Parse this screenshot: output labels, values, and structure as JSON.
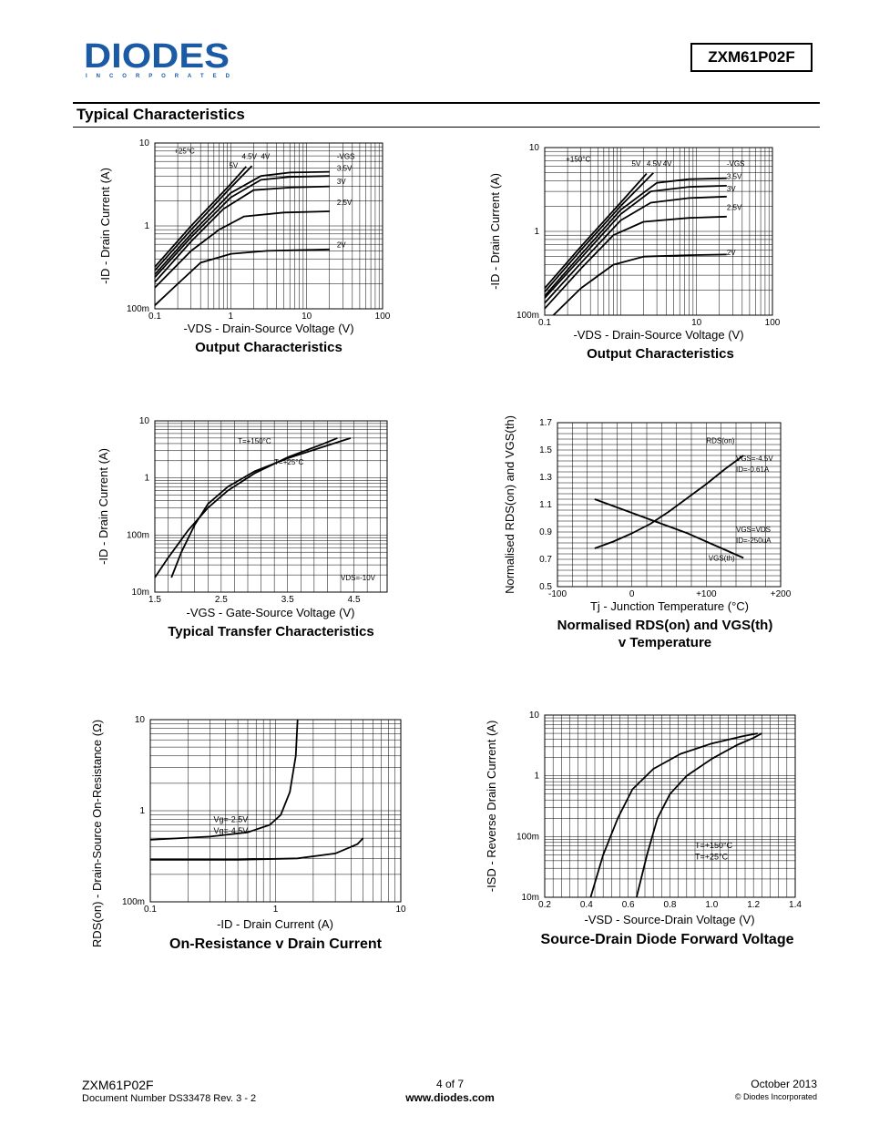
{
  "header": {
    "logo_text": "DIODES",
    "logo_sub": "I N C O R P O R A T E D",
    "part_number": "ZXM61P02F",
    "section_title": "Typical Characteristics"
  },
  "footer": {
    "part": "ZXM61P02F",
    "doc_number": "Document Number DS33478 Rev. 3 - 2",
    "page": "4 of 7",
    "website": "www.diodes.com",
    "date": "October 2013",
    "copyright": "© Diodes Incorporated"
  },
  "chart_data": [
    {
      "id": "c1",
      "type": "line",
      "title": "Output Characteristics",
      "xlabel": "-VDS - Drain-Source Voltage (V)",
      "ylabel": "-ID - Drain Current (A)",
      "xscale": "log",
      "yscale": "log",
      "xlim": [
        0.1,
        100
      ],
      "ylim": [
        0.1,
        10
      ],
      "xticks": [
        0.1,
        1,
        10,
        100
      ],
      "xtick_labels": [
        "0.1",
        "1",
        "10",
        "100"
      ],
      "yticks": [
        0.1,
        1,
        10
      ],
      "ytick_labels": [
        "100m",
        "1",
        "10"
      ],
      "legend_title": "-VGS",
      "annotations": [
        {
          "text": "+25°C",
          "x": 0.18,
          "y": 7.5
        },
        {
          "text": "4.5V",
          "x": 1.4,
          "y": 6.4
        },
        {
          "text": "4V",
          "x": 2.5,
          "y": 6.4
        },
        {
          "text": "5V",
          "x": 0.95,
          "y": 5.0
        },
        {
          "text": "-VGS",
          "x": 25,
          "y": 6.4
        },
        {
          "text": "3.5V",
          "x": 25,
          "y": 4.6
        },
        {
          "text": "3V",
          "x": 25,
          "y": 3.2
        },
        {
          "text": "2.5V",
          "x": 25,
          "y": 1.8
        },
        {
          "text": "2V",
          "x": 25,
          "y": 0.55
        }
      ],
      "series": [
        {
          "name": "5V",
          "x": [
            0.1,
            0.3,
            1,
            1.6
          ],
          "y": [
            0.32,
            1.0,
            3.2,
            5.2
          ]
        },
        {
          "name": "4.5V",
          "x": [
            0.1,
            0.3,
            1,
            1.9
          ],
          "y": [
            0.29,
            0.9,
            2.9,
            5.3
          ]
        },
        {
          "name": "4V",
          "x": [
            0.1,
            0.3,
            1,
            2.5,
            6,
            20
          ],
          "y": [
            0.26,
            0.8,
            2.5,
            4.0,
            4.4,
            4.5
          ]
        },
        {
          "name": "3.5V",
          "x": [
            0.1,
            0.3,
            1,
            2.5,
            6,
            20
          ],
          "y": [
            0.24,
            0.73,
            2.2,
            3.6,
            3.9,
            4.0
          ]
        },
        {
          "name": "3V",
          "x": [
            0.1,
            0.3,
            0.8,
            2,
            6,
            20
          ],
          "y": [
            0.21,
            0.65,
            1.6,
            2.7,
            2.9,
            3.0
          ]
        },
        {
          "name": "2.5V",
          "x": [
            0.1,
            0.3,
            0.7,
            1.5,
            5,
            20
          ],
          "y": [
            0.18,
            0.5,
            0.9,
            1.3,
            1.45,
            1.5
          ]
        },
        {
          "name": "2V",
          "x": [
            0.1,
            0.2,
            0.4,
            1,
            3,
            20
          ],
          "y": [
            0.11,
            0.2,
            0.36,
            0.46,
            0.5,
            0.52
          ]
        }
      ]
    },
    {
      "id": "c2",
      "type": "line",
      "title": "Output Characteristics",
      "xlabel": "-VDS - Drain-Source Voltage (V)",
      "ylabel": "-ID - Drain Current (A)",
      "xscale": "log",
      "yscale": "log",
      "xlim": [
        0.1,
        100
      ],
      "ylim": [
        0.1,
        10
      ],
      "xticks": [
        0.1,
        10,
        100
      ],
      "xtick_labels": [
        "0.1",
        "10",
        "100"
      ],
      "yticks": [
        0.1,
        1,
        10
      ],
      "ytick_labels": [
        "100m",
        "1",
        "10"
      ],
      "legend_title": "-VGS",
      "annotations": [
        {
          "text": "+150°C",
          "x": 0.19,
          "y": 6.8
        },
        {
          "text": "5V",
          "x": 1.4,
          "y": 6.0
        },
        {
          "text": "4.5V",
          "x": 2.2,
          "y": 6.0
        },
        {
          "text": "4V",
          "x": 3.6,
          "y": 6.0
        },
        {
          "text": "-VGS",
          "x": 25,
          "y": 6.0
        },
        {
          "text": "3.5V",
          "x": 25,
          "y": 4.2
        },
        {
          "text": "3V",
          "x": 25,
          "y": 3.0
        },
        {
          "text": "2.5V",
          "x": 25,
          "y": 1.8
        },
        {
          "text": "2V",
          "x": 25,
          "y": 0.52
        }
      ],
      "series": [
        {
          "name": "5V",
          "x": [
            0.1,
            0.3,
            1,
            2.2
          ],
          "y": [
            0.21,
            0.66,
            2.2,
            4.9
          ]
        },
        {
          "name": "4.5V",
          "x": [
            0.1,
            0.3,
            1,
            2.7
          ],
          "y": [
            0.19,
            0.6,
            2.0,
            5.0
          ]
        },
        {
          "name": "4V",
          "x": [
            0.1,
            0.3,
            1,
            3,
            8,
            25
          ],
          "y": [
            0.17,
            0.53,
            1.8,
            3.8,
            4.2,
            4.3
          ]
        },
        {
          "name": "3.5V",
          "x": [
            0.1,
            0.3,
            1,
            2.5,
            8,
            25
          ],
          "y": [
            0.16,
            0.48,
            1.6,
            3.0,
            3.4,
            3.5
          ]
        },
        {
          "name": "3V",
          "x": [
            0.1,
            0.3,
            1,
            2.5,
            8,
            25
          ],
          "y": [
            0.14,
            0.42,
            1.35,
            2.2,
            2.5,
            2.6
          ]
        },
        {
          "name": "2.5V",
          "x": [
            0.1,
            0.3,
            0.8,
            2,
            8,
            25
          ],
          "y": [
            0.12,
            0.36,
            0.9,
            1.3,
            1.45,
            1.5
          ]
        },
        {
          "name": "2V",
          "x": [
            0.13,
            0.3,
            0.8,
            2,
            8,
            25
          ],
          "y": [
            0.1,
            0.21,
            0.4,
            0.5,
            0.52,
            0.53
          ]
        }
      ]
    },
    {
      "id": "c3",
      "type": "line",
      "title": "Typical Transfer Characteristics",
      "xlabel": "-VGS - Gate-Source Voltage (V)",
      "ylabel": "-ID - Drain Current (A)",
      "xscale": "linear",
      "yscale": "log",
      "xlim": [
        1.5,
        5.0
      ],
      "ylim": [
        0.01,
        10
      ],
      "xticks": [
        1.5,
        2.5,
        3.5,
        4.5
      ],
      "xtick_labels": [
        "1.5",
        "2.5",
        "3.5",
        "4.5"
      ],
      "yticks": [
        0.01,
        0.1,
        1,
        10
      ],
      "ytick_labels": [
        "10m",
        "100m",
        "1",
        "10"
      ],
      "annotations": [
        {
          "text": "T=+150°C",
          "x": 2.75,
          "y": 4.0
        },
        {
          "text": "T=+25°C",
          "x": 3.3,
          "y": 1.7
        },
        {
          "text": "VDS=-10V",
          "x": 4.3,
          "y": 0.016
        }
      ],
      "series": [
        {
          "name": "T=+150°C",
          "x": [
            1.5,
            1.7,
            2.0,
            2.3,
            2.6,
            3.0,
            3.5,
            4.0,
            4.25
          ],
          "y": [
            0.018,
            0.04,
            0.12,
            0.3,
            0.6,
            1.2,
            2.3,
            3.8,
            5.0
          ]
        },
        {
          "name": "T=+25°C",
          "x": [
            1.75,
            1.9,
            2.1,
            2.3,
            2.6,
            3.0,
            3.5,
            4.0,
            4.45
          ],
          "y": [
            0.018,
            0.05,
            0.15,
            0.35,
            0.7,
            1.3,
            2.2,
            3.4,
            5.0
          ]
        }
      ]
    },
    {
      "id": "c4",
      "type": "line",
      "title": "Normalised RDS(on) and VGS(th) v Temperature",
      "title_lines": [
        "Normalised RDS(on) and VGS(th)",
        "v Temperature"
      ],
      "xlabel": "Tj - Junction Temperature (°C)",
      "ylabel": "Normalised RDS(on) and VGS(th)",
      "xscale": "linear",
      "yscale": "linear",
      "xlim": [
        -100,
        200
      ],
      "ylim": [
        0.5,
        1.7
      ],
      "xticks": [
        -100,
        0,
        100,
        200
      ],
      "xtick_labels": [
        "-100",
        "0",
        "+100",
        "+200"
      ],
      "yticks": [
        0.5,
        0.7,
        0.9,
        1.1,
        1.3,
        1.5,
        1.7
      ],
      "ytick_labels": [
        "0.5",
        "0.7",
        "0.9",
        "1.1",
        "1.3",
        "1.5",
        "1.7"
      ],
      "annotations": [
        {
          "text": "RDS(on)",
          "x": 100,
          "y": 1.55
        },
        {
          "text": "VGS=-4.5V",
          "x": 140,
          "y": 1.42
        },
        {
          "text": "ID=-0.61A",
          "x": 140,
          "y": 1.34
        },
        {
          "text": "VGS=VDS",
          "x": 140,
          "y": 0.9
        },
        {
          "text": "ID=-250uA",
          "x": 140,
          "y": 0.82
        },
        {
          "text": "VGS(th)",
          "x": 103,
          "y": 0.69
        }
      ],
      "series": [
        {
          "name": "RDS(on)",
          "x": [
            -50,
            -25,
            0,
            25,
            50,
            75,
            100,
            125,
            150
          ],
          "y": [
            0.78,
            0.83,
            0.89,
            0.96,
            1.05,
            1.15,
            1.25,
            1.36,
            1.46
          ]
        },
        {
          "name": "VGS(th)",
          "x": [
            -50,
            -25,
            0,
            25,
            50,
            75,
            100,
            125,
            150
          ],
          "y": [
            1.14,
            1.09,
            1.04,
            0.99,
            0.94,
            0.89,
            0.83,
            0.77,
            0.71
          ]
        }
      ]
    },
    {
      "id": "c5",
      "type": "line",
      "title": "On-Resistance v Drain Current",
      "xlabel": "-ID - Drain Current (A)",
      "ylabel": "RDS(on) - Drain-Source On-Resistance (Ω)",
      "xscale": "log",
      "yscale": "log",
      "xlim": [
        0.1,
        10
      ],
      "ylim": [
        0.1,
        10
      ],
      "xticks": [
        0.1,
        1,
        10
      ],
      "xtick_labels": [
        "0.1",
        "1",
        "10"
      ],
      "yticks": [
        0.1,
        1,
        10
      ],
      "ytick_labels": [
        "100m",
        "1",
        "10"
      ],
      "annotations": [
        {
          "text": "Vg=-2.5V",
          "x": 0.32,
          "y": 0.75
        },
        {
          "text": "Vg=-4.5V",
          "x": 0.32,
          "y": 0.56
        }
      ],
      "series": [
        {
          "name": "Vg=-2.5V",
          "x": [
            0.1,
            0.3,
            0.6,
            0.9,
            1.1,
            1.3,
            1.45,
            1.5
          ],
          "y": [
            0.48,
            0.52,
            0.58,
            0.7,
            0.9,
            1.6,
            4.0,
            10
          ]
        },
        {
          "name": "Vg=-4.5V",
          "x": [
            0.1,
            0.5,
            1.5,
            3.0,
            4.5,
            5.0
          ],
          "y": [
            0.29,
            0.29,
            0.3,
            0.34,
            0.43,
            0.5
          ]
        }
      ]
    },
    {
      "id": "c6",
      "type": "line",
      "title": "Source-Drain Diode Forward Voltage",
      "xlabel": "-VSD - Source-Drain Voltage (V)",
      "ylabel": "-ISD - Reverse Drain Current (A)",
      "xscale": "linear",
      "yscale": "log",
      "xlim": [
        0.2,
        1.4
      ],
      "ylim": [
        0.01,
        10
      ],
      "xticks": [
        0.2,
        0.4,
        0.6,
        0.8,
        1.0,
        1.2,
        1.4
      ],
      "xtick_labels": [
        "0.2",
        "0.4",
        "0.6",
        "0.8",
        "1.0",
        "1.2",
        "1.4"
      ],
      "yticks": [
        0.01,
        0.1,
        1,
        10
      ],
      "ytick_labels": [
        "10m",
        "100m",
        "1",
        "10"
      ],
      "annotations": [
        {
          "text": "T=+150°C",
          "x": 0.92,
          "y": 0.065
        },
        {
          "text": "T=+25°C",
          "x": 0.92,
          "y": 0.042
        }
      ],
      "series": [
        {
          "name": "T=+150°C",
          "x": [
            0.42,
            0.48,
            0.55,
            0.62,
            0.72,
            0.85,
            1.0,
            1.15,
            1.22
          ],
          "y": [
            0.01,
            0.05,
            0.2,
            0.6,
            1.3,
            2.3,
            3.4,
            4.5,
            5.0
          ]
        },
        {
          "name": "T=+25°C",
          "x": [
            0.64,
            0.69,
            0.74,
            0.8,
            0.88,
            1.0,
            1.12,
            1.2,
            1.24
          ],
          "y": [
            0.01,
            0.05,
            0.2,
            0.5,
            1.0,
            1.9,
            3.2,
            4.2,
            5.0
          ]
        }
      ]
    }
  ]
}
